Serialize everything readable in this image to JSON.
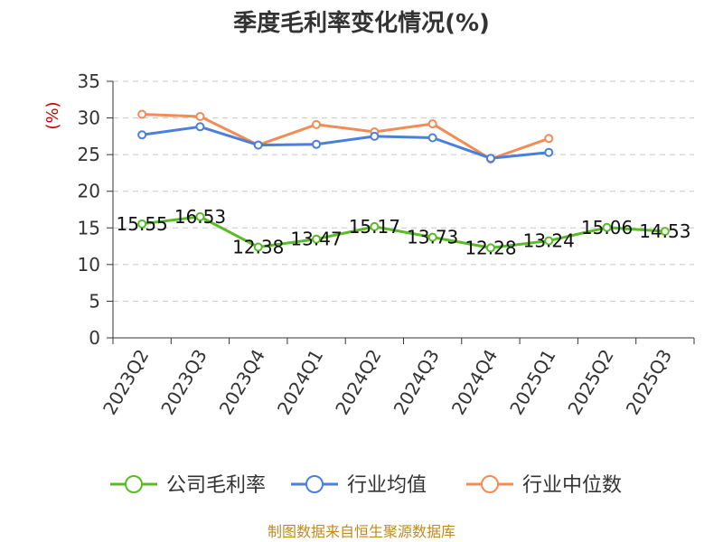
{
  "chart_data": {
    "type": "line",
    "title": "季度毛利率变化情况(%)",
    "ylabel": "(%)",
    "ylim": [
      0,
      35
    ],
    "yticks": [
      0,
      5,
      10,
      15,
      20,
      25,
      30,
      35
    ],
    "grid": true,
    "legend_position": "bottom",
    "categories": [
      "2023Q2",
      "2023Q3",
      "2023Q4",
      "2024Q1",
      "2024Q2",
      "2024Q3",
      "2024Q4",
      "2025Q1",
      "2025Q2",
      "2025Q3"
    ],
    "series": [
      {
        "name": "公司毛利率",
        "color": "#58bd25",
        "values": [
          15.55,
          16.53,
          12.38,
          13.47,
          15.17,
          13.73,
          12.28,
          13.24,
          15.06,
          14.53
        ],
        "labels": [
          "15.55",
          "16.53",
          "12.38",
          "13.47",
          "15.17",
          "13.73",
          "12.28",
          "13.24",
          "15.06",
          "14.53"
        ]
      },
      {
        "name": "行业均值",
        "color": "#4a7fdc",
        "values": [
          27.7,
          28.8,
          26.3,
          26.4,
          27.5,
          27.3,
          24.5,
          25.3,
          null,
          null
        ]
      },
      {
        "name": "行业中位数",
        "color": "#f38b55",
        "values": [
          30.5,
          30.2,
          26.3,
          29.1,
          28.1,
          29.2,
          24.4,
          27.2,
          null,
          null
        ]
      }
    ]
  },
  "source": "制图数据来自恒生聚源数据库"
}
